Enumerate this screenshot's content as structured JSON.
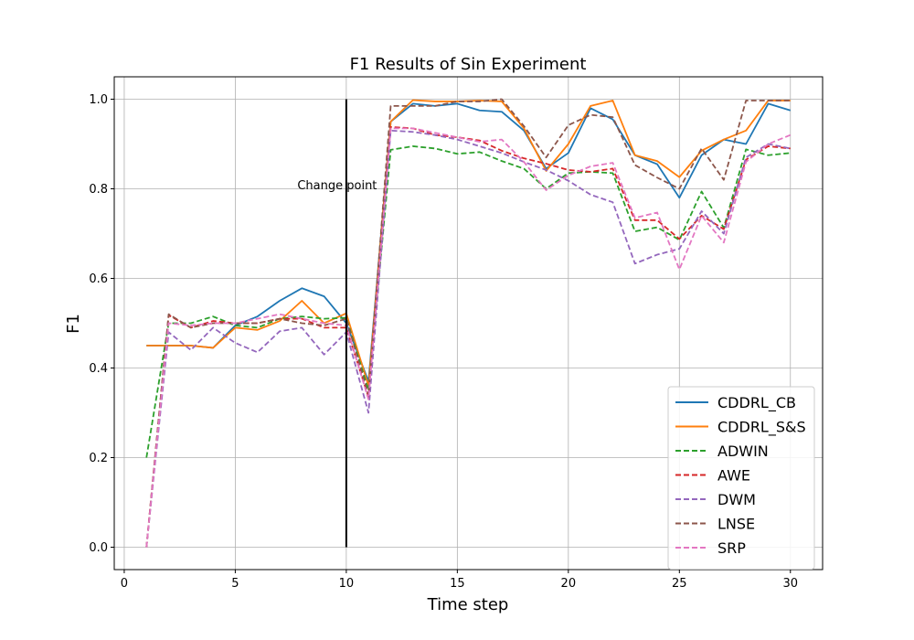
{
  "chart_data": {
    "type": "line",
    "title": "F1 Results of Sin Experiment",
    "xlabel": "Time step",
    "ylabel": "F1",
    "xlim": [
      -0.45,
      31.45
    ],
    "ylim": [
      -0.05,
      1.05
    ],
    "xticks": [
      0,
      5,
      10,
      15,
      20,
      25,
      30
    ],
    "yticks": [
      0.0,
      0.2,
      0.4,
      0.6,
      0.8,
      1.0
    ],
    "xtick_labels": [
      "0",
      "5",
      "10",
      "15",
      "20",
      "25",
      "30"
    ],
    "ytick_labels": [
      "0.0",
      "0.2",
      "0.4",
      "0.6",
      "0.8",
      "1.0"
    ],
    "grid": true,
    "legend_position": "bottom-right",
    "annotation": {
      "text": "Change point",
      "x": 10,
      "y_from": 0.0,
      "y_to": 1.0,
      "label_y": 0.8
    },
    "x": [
      1,
      2,
      3,
      4,
      5,
      6,
      7,
      8,
      9,
      10,
      11,
      12,
      13,
      14,
      15,
      16,
      17,
      18,
      19,
      20,
      21,
      22,
      23,
      24,
      25,
      26,
      27,
      28,
      29,
      30
    ],
    "series": [
      {
        "name": "CDDRL_CB",
        "color": "#1f77b4",
        "dashed": false,
        "values": [
          0.45,
          0.45,
          0.45,
          0.445,
          0.495,
          0.515,
          0.55,
          0.578,
          0.56,
          0.5,
          0.37,
          0.95,
          0.99,
          0.985,
          0.99,
          0.975,
          0.972,
          0.93,
          0.845,
          0.88,
          0.98,
          0.955,
          0.875,
          0.855,
          0.78,
          0.875,
          0.91,
          0.9,
          0.99,
          0.975
        ]
      },
      {
        "name": "CDDRL_S&S",
        "color": "#ff7f0e",
        "dashed": false,
        "values": [
          0.45,
          0.45,
          0.45,
          0.445,
          0.49,
          0.485,
          0.505,
          0.55,
          0.5,
          0.522,
          0.36,
          0.95,
          0.998,
          0.995,
          0.995,
          0.997,
          0.995,
          0.935,
          0.84,
          0.9,
          0.985,
          0.997,
          0.875,
          0.862,
          0.826,
          0.885,
          0.91,
          0.93,
          0.997,
          0.997
        ]
      },
      {
        "name": "ADWIN",
        "color": "#2ca02c",
        "dashed": true,
        "values": [
          0.2,
          0.5,
          0.5,
          0.515,
          0.495,
          0.49,
          0.51,
          0.515,
          0.51,
          0.512,
          0.35,
          0.887,
          0.895,
          0.89,
          0.878,
          0.882,
          0.862,
          0.845,
          0.8,
          0.835,
          0.838,
          0.835,
          0.705,
          0.714,
          0.686,
          0.794,
          0.713,
          0.888,
          0.875,
          0.88
        ]
      },
      {
        "name": "AWE",
        "color": "#d62728",
        "dashed": true,
        "values": [
          0.0,
          0.518,
          0.49,
          0.505,
          0.5,
          0.5,
          0.51,
          0.51,
          0.49,
          0.49,
          0.335,
          0.938,
          0.935,
          0.92,
          0.915,
          0.908,
          0.885,
          0.868,
          0.856,
          0.842,
          0.838,
          0.845,
          0.73,
          0.73,
          0.688,
          0.74,
          0.71,
          0.865,
          0.895,
          0.89
        ]
      },
      {
        "name": "DWM",
        "color": "#9467bd",
        "dashed": true,
        "values": [
          0.0,
          0.48,
          0.44,
          0.49,
          0.456,
          0.435,
          0.482,
          0.49,
          0.43,
          0.48,
          0.3,
          0.93,
          0.927,
          0.92,
          0.91,
          0.895,
          0.88,
          0.86,
          0.842,
          0.818,
          0.787,
          0.77,
          0.633,
          0.653,
          0.666,
          0.75,
          0.7,
          0.87,
          0.9,
          0.89
        ]
      },
      {
        "name": "LNSE",
        "color": "#8c564b",
        "dashed": true,
        "values": [
          0.0,
          0.52,
          0.49,
          0.5,
          0.5,
          0.5,
          0.51,
          0.5,
          0.495,
          0.51,
          0.34,
          0.985,
          0.985,
          0.985,
          0.995,
          0.995,
          1.0,
          0.94,
          0.87,
          0.942,
          0.965,
          0.96,
          0.853,
          0.825,
          0.8,
          0.89,
          0.82,
          0.997,
          0.997,
          0.997
        ]
      },
      {
        "name": "SRP",
        "color": "#e377c2",
        "dashed": true,
        "values": [
          0.0,
          0.5,
          0.495,
          0.5,
          0.5,
          0.51,
          0.52,
          0.51,
          0.5,
          0.495,
          0.33,
          0.935,
          0.935,
          0.925,
          0.915,
          0.905,
          0.91,
          0.86,
          0.797,
          0.83,
          0.85,
          0.858,
          0.735,
          0.747,
          0.62,
          0.74,
          0.68,
          0.86,
          0.9,
          0.92
        ]
      }
    ]
  }
}
